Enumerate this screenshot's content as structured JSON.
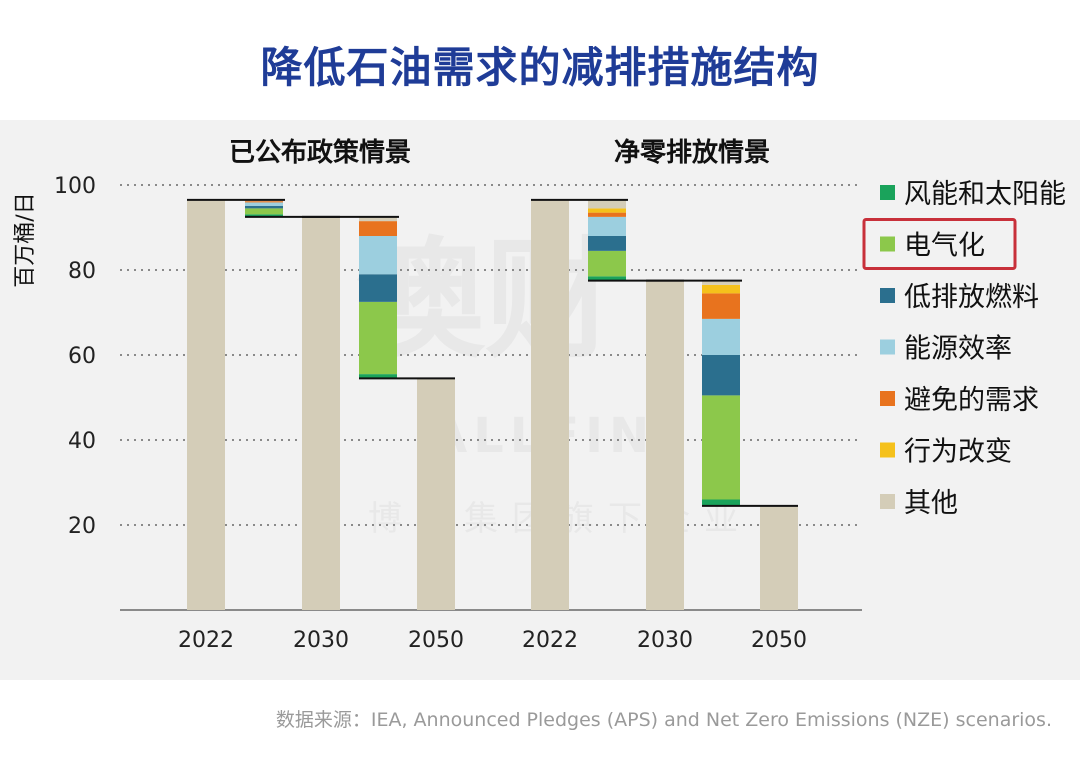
{
  "title": "降低石油需求的减排措施结构",
  "source": "数据来源：IEA, Announced Pledges (APS) and Net Zero Emissions (NZE) scenarios.",
  "watermark": {
    "main": "澳财",
    "brand": "ALLFIN",
    "sub": "博满集团旗下企业"
  },
  "colors": {
    "wind_solar": "#1aa35b",
    "electrification": "#8cc84b",
    "low_emission_fuels": "#2b6f8e",
    "efficiency": "#9ccfdf",
    "avoided_demand": "#e8731e",
    "behaviour": "#f5c11b",
    "other": "#d4cdb8",
    "highlight": "#c8303a"
  },
  "chart_data": {
    "type": "waterfall",
    "ylabel": "百万桶/日",
    "ylim": [
      0,
      100
    ],
    "yticks": [
      20,
      40,
      60,
      80,
      100
    ],
    "grid": true,
    "legend_position": "right",
    "legend": [
      {
        "key": "wind_solar",
        "label": "风能和太阳能"
      },
      {
        "key": "electrification",
        "label": "电气化",
        "highlighted": true
      },
      {
        "key": "low_emission_fuels",
        "label": "低排放燃料"
      },
      {
        "key": "efficiency",
        "label": "能源效率"
      },
      {
        "key": "avoided_demand",
        "label": "避免的需求"
      },
      {
        "key": "behaviour",
        "label": "行为改变"
      },
      {
        "key": "other",
        "label": "其他"
      }
    ],
    "panels": [
      {
        "title": "已公布政策情景",
        "totals": [
          {
            "label": "2022",
            "value": 96.5
          },
          {
            "label": "2030",
            "value": 92.5
          },
          {
            "label": "2050",
            "value": 54.5
          }
        ],
        "reductions": [
          {
            "from": 96.5,
            "to": 92.5,
            "segments": [
              {
                "key": "wind_solar",
                "value": 0.6
              },
              {
                "key": "electrification",
                "value": 1.4
              },
              {
                "key": "low_emission_fuels",
                "value": 0.6
              },
              {
                "key": "efficiency",
                "value": 0.8
              },
              {
                "key": "avoided_demand",
                "value": 0.3
              },
              {
                "key": "other",
                "value": 0.3
              }
            ]
          },
          {
            "from": 92.5,
            "to": 54.5,
            "segments": [
              {
                "key": "wind_solar",
                "value": 1.0
              },
              {
                "key": "electrification",
                "value": 17.0
              },
              {
                "key": "low_emission_fuels",
                "value": 6.5
              },
              {
                "key": "efficiency",
                "value": 9.0
              },
              {
                "key": "avoided_demand",
                "value": 3.5
              },
              {
                "key": "other",
                "value": 1.0
              }
            ]
          }
        ]
      },
      {
        "title": "净零排放情景",
        "totals": [
          {
            "label": "2022",
            "value": 96.5
          },
          {
            "label": "2030",
            "value": 77.5
          },
          {
            "label": "2050",
            "value": 24.5
          }
        ],
        "reductions": [
          {
            "from": 96.5,
            "to": 77.5,
            "segments": [
              {
                "key": "wind_solar",
                "value": 1.0
              },
              {
                "key": "electrification",
                "value": 6.0
              },
              {
                "key": "low_emission_fuels",
                "value": 3.5
              },
              {
                "key": "efficiency",
                "value": 4.5
              },
              {
                "key": "avoided_demand",
                "value": 1.0
              },
              {
                "key": "behaviour",
                "value": 1.0
              },
              {
                "key": "other",
                "value": 2.0
              }
            ]
          },
          {
            "from": 77.5,
            "to": 24.5,
            "segments": [
              {
                "key": "wind_solar",
                "value": 1.5
              },
              {
                "key": "electrification",
                "value": 24.5
              },
              {
                "key": "low_emission_fuels",
                "value": 9.5
              },
              {
                "key": "efficiency",
                "value": 8.5
              },
              {
                "key": "avoided_demand",
                "value": 6.0
              },
              {
                "key": "behaviour",
                "value": 2.0
              },
              {
                "key": "other",
                "value": 1.0
              }
            ]
          }
        ]
      }
    ]
  }
}
